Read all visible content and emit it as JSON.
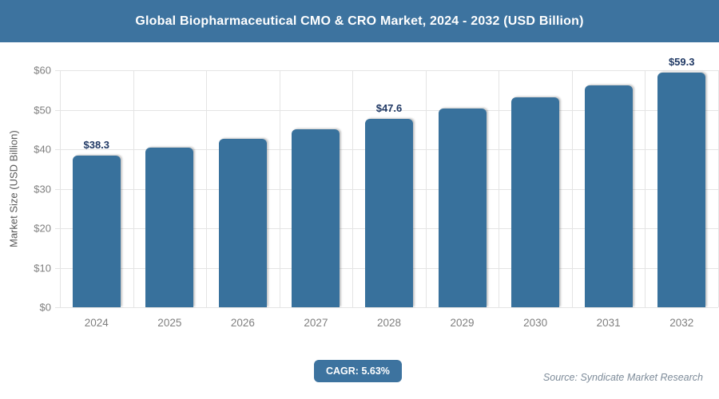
{
  "header": {
    "title": "Global Biopharmaceutical CMO & CRO Market, 2024 - 2032 (USD Billion)"
  },
  "colors": {
    "accent": "#3d739f",
    "bar": "#38719c",
    "grid": "#e4e4e4",
    "tick_text": "#7f7f7f",
    "axis_title_text": "#595959",
    "data_label_text": "#1f3864",
    "source_text": "#7d8b99"
  },
  "chart_data": {
    "type": "bar",
    "title": "Global Biopharmaceutical CMO & CRO Market, 2024 - 2032 (USD Billion)",
    "xlabel": "",
    "ylabel": "Market Size (USD Billion)",
    "categories": [
      "2024",
      "2025",
      "2026",
      "2027",
      "2028",
      "2029",
      "2030",
      "2031",
      "2032"
    ],
    "values": [
      38.3,
      40.5,
      42.7,
      45.1,
      47.6,
      50.3,
      53.1,
      56.1,
      59.3
    ],
    "data_labels": [
      "$38.3",
      null,
      null,
      null,
      "$47.6",
      null,
      null,
      null,
      "$59.3"
    ],
    "ylim": [
      0,
      60
    ],
    "yticks_bottom_to_top": [
      "$0",
      "$10",
      "$20",
      "$30",
      "$40",
      "$50",
      "$60"
    ],
    "grid": true,
    "legend": "none"
  },
  "footer": {
    "cagr_label": "CAGR: 5.63%",
    "source": "Source: Syndicate Market Research"
  }
}
